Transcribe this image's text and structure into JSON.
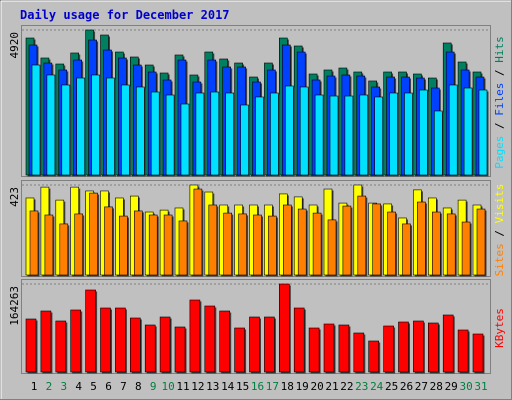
{
  "title": "Daily usage for December 2017",
  "legend_separator": " / ",
  "chart_data": [
    {
      "type": "bar",
      "ylim": [
        0,
        4920
      ],
      "yticks": [
        4920
      ],
      "series": [
        {
          "name": "Hits",
          "color": "#008060",
          "values": [
            4648,
            3970,
            3766,
            4140,
            4920,
            4750,
            4173,
            4004,
            3732,
            3461,
            4072,
            3393,
            4173,
            3936,
            3800,
            3325,
            3800,
            4648,
            4377,
            3427,
            3563,
            3630,
            3495,
            3190,
            3495,
            3495,
            3427,
            3291,
            4479,
            3834,
            3495
          ]
        },
        {
          "name": "Files",
          "color": "#0040ff",
          "values": [
            4411,
            3800,
            3563,
            3902,
            4580,
            4241,
            3970,
            3732,
            3495,
            3224,
            3902,
            3156,
            3902,
            3665,
            3665,
            3156,
            3563,
            4411,
            4173,
            3224,
            3359,
            3393,
            3359,
            2986,
            3325,
            3325,
            3291,
            2952,
            4173,
            3563,
            3325
          ]
        },
        {
          "name": "Pages",
          "color": "#00e0ff",
          "values": [
            3732,
            3393,
            3054,
            3291,
            3393,
            3291,
            3054,
            2986,
            2816,
            2714,
            2409,
            2782,
            2816,
            2782,
            2375,
            2647,
            2782,
            3020,
            2986,
            2714,
            2680,
            2680,
            2714,
            2647,
            2782,
            2782,
            2884,
            2172,
            3054,
            2952,
            2884
          ]
        }
      ]
    },
    {
      "type": "bar",
      "ylim": [
        0,
        423
      ],
      "yticks": [
        423
      ],
      "series": [
        {
          "name": "Visits",
          "color": "#ffff00",
          "values": [
            362,
            413,
            352,
            413,
            395,
            395,
            362,
            371,
            296,
            305,
            315,
            423,
            390,
            329,
            329,
            329,
            329,
            381,
            367,
            329,
            404,
            338,
            423,
            338,
            334,
            268,
            400,
            362,
            315,
            352,
            329
          ]
        },
        {
          "name": "Sites",
          "color": "#ff8000",
          "values": [
            301,
            282,
            240,
            287,
            385,
            320,
            277,
            301,
            282,
            282,
            254,
            404,
            329,
            291,
            287,
            282,
            277,
            329,
            310,
            291,
            259,
            324,
            371,
            334,
            296,
            240,
            343,
            296,
            287,
            249,
            310
          ]
        }
      ]
    },
    {
      "type": "bar",
      "ylim": [
        0,
        164263
      ],
      "yticks": [
        164263
      ],
      "categories": [
        "1",
        "2",
        "3",
        "4",
        "5",
        "6",
        "7",
        "8",
        "9",
        "10",
        "11",
        "12",
        "13",
        "14",
        "15",
        "16",
        "17",
        "18",
        "19",
        "20",
        "21",
        "22",
        "23",
        "24",
        "25",
        "26",
        "27",
        "28",
        "29",
        "30",
        "31"
      ],
      "category_colors": [
        "#000000",
        "#008040",
        "#008040",
        "#000000",
        "#000000",
        "#000000",
        "#000000",
        "#000000",
        "#008040",
        "#008040",
        "#000000",
        "#000000",
        "#000000",
        "#000000",
        "#000000",
        "#008040",
        "#008040",
        "#000000",
        "#000000",
        "#000000",
        "#000000",
        "#000000",
        "#008040",
        "#008040",
        "#000000",
        "#000000",
        "#000000",
        "#000000",
        "#000000",
        "#008040",
        "#008040"
      ],
      "series": [
        {
          "name": "KBytes",
          "color": "#ff0000",
          "values": [
            98930,
            113860,
            95200,
            115730,
            153060,
            119460,
            119460,
            100800,
            87730,
            102660,
            84000,
            134390,
            123190,
            113860,
            82130,
            102660,
            102660,
            164263,
            119460,
            82130,
            89600,
            87730,
            72800,
            57860,
            85860,
            93330,
            95200,
            91460,
            106400,
            78400,
            70930
          ]
        }
      ]
    }
  ]
}
